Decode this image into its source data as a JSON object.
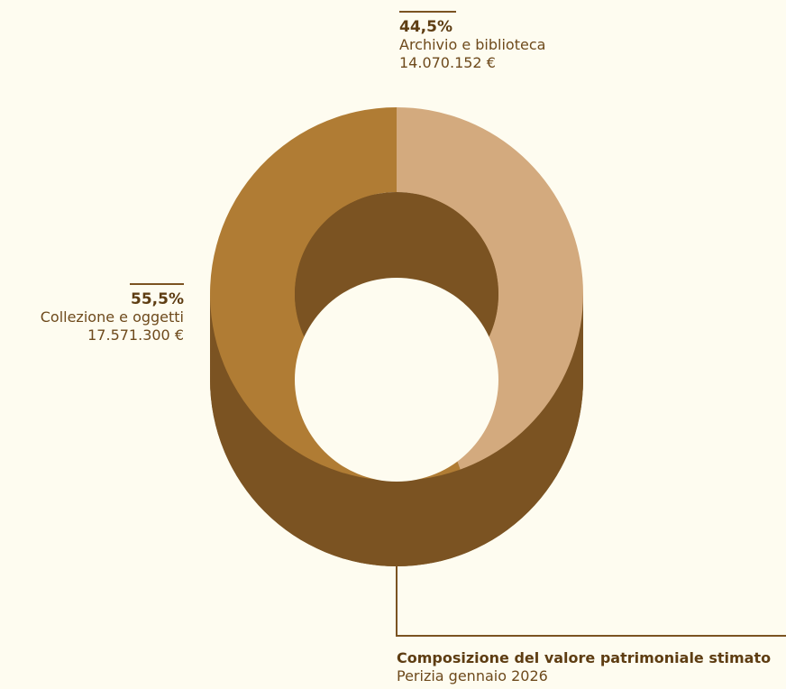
{
  "chart_data": {
    "type": "pie",
    "style": "3d-donut",
    "categories": [
      "Archivio e biblioteca",
      "Collezione e oggetti"
    ],
    "values": [
      14070152,
      17571300
    ],
    "percent_labels": [
      "44,5%",
      "55,5%"
    ],
    "value_labels": [
      "14.070.152 €",
      "17.571.300 €"
    ],
    "colors": [
      "#d3aa7e",
      "#b07c34"
    ],
    "side_color": "#7b5322",
    "title": "Composizione del valore patrimoniale stimato",
    "subtitle": "Perizia gennaio 2026"
  }
}
